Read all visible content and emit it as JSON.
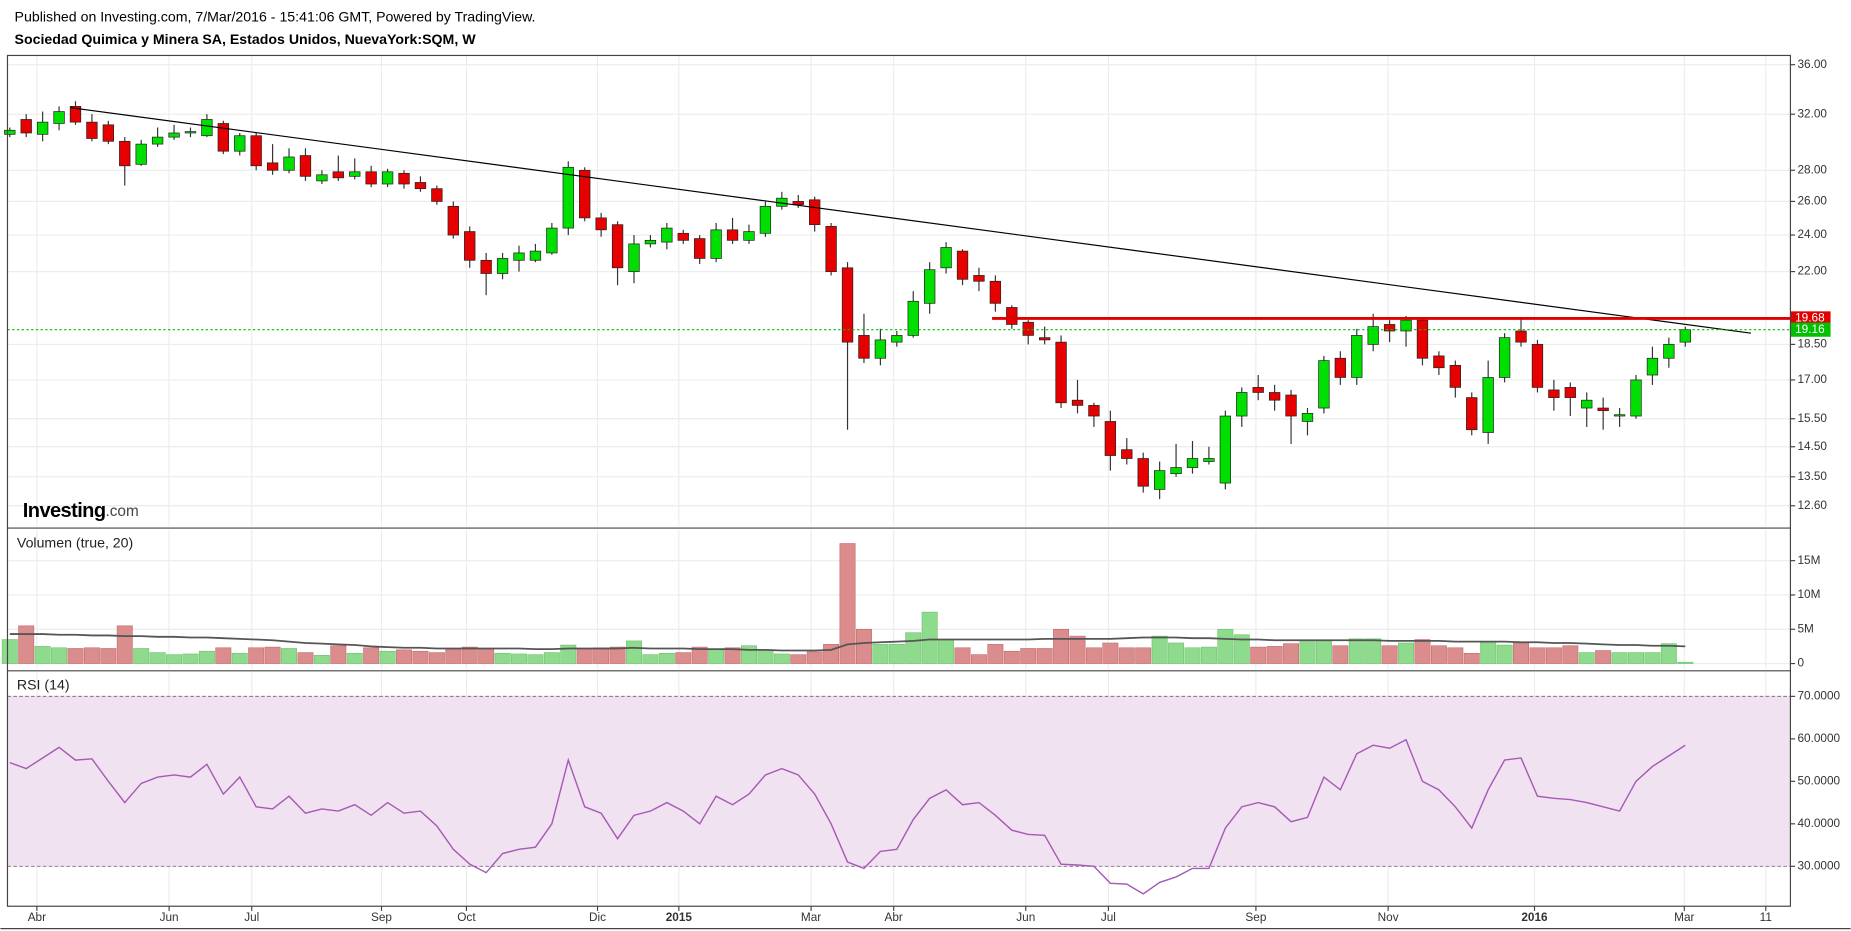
{
  "header": {
    "published": "Published on Investing.com, 7/Mar/2016 - 15:41:06 GMT, Powered by TradingView.",
    "logo": [
      "Investing",
      ".com"
    ]
  },
  "chart_data": [
    {
      "type": "candlestick",
      "title": "Sociedad Quimica y Minera SA, Estados Unidos, NuevaYork:SQM, W",
      "log_scale": true,
      "grid": true,
      "up_color": "#00e000",
      "down_color": "#e60000",
      "open": [
        30.5,
        31.6,
        30.5,
        31.3,
        32.6,
        31.4,
        31.2,
        30,
        28.4,
        29.8,
        30.3,
        30.6,
        30.4,
        31.3,
        29.3,
        30.4,
        28.5,
        28,
        29,
        27.3,
        27.9,
        27.6,
        27.9,
        27.1,
        27.8,
        27.2,
        26.8,
        25.7,
        24.2,
        22.6,
        21.9,
        22.6,
        22.6,
        23,
        24.4,
        28,
        25,
        24.6,
        22,
        23.5,
        23.6,
        24.1,
        23.8,
        22.7,
        24.3,
        23.7,
        24.1,
        25.7,
        26,
        26.1,
        24.5,
        22.2,
        18.9,
        17.9,
        18.6,
        18.9,
        20.4,
        22.2,
        23.1,
        21.8,
        21.5,
        20.2,
        19.5,
        18.8,
        18.6,
        16.2,
        16,
        15.4,
        14.4,
        14.1,
        13.1,
        13.6,
        13.8,
        14,
        13.3,
        15.6,
        16.7,
        16.5,
        16.4,
        15.4,
        15.9,
        17.9,
        17.1,
        18.5,
        19.4,
        19.1,
        19.6,
        18,
        17.6,
        16.3,
        15,
        17.1,
        19.1,
        18.5,
        16.6,
        16.7,
        15.9,
        15.9,
        15.6,
        15.6,
        17.2,
        17.9,
        18.6
      ],
      "high": [
        31,
        32,
        32.2,
        32.6,
        33,
        32,
        31.5,
        30.3,
        30.1,
        31,
        31.2,
        31,
        32,
        31.5,
        30.6,
        30.6,
        29.8,
        29.5,
        29.5,
        28,
        29,
        28.8,
        28.3,
        28.1,
        28,
        27.6,
        27,
        26,
        24.5,
        23,
        23,
        23.4,
        23.5,
        24.7,
        28.6,
        28.2,
        25.3,
        24.8,
        24,
        24,
        24.7,
        24.3,
        24,
        24.7,
        25,
        24.6,
        26,
        26.6,
        26.4,
        26.3,
        24.7,
        22.5,
        19.9,
        19.2,
        19.1,
        21,
        22.5,
        23.6,
        23.2,
        22.2,
        21.8,
        20.3,
        19.6,
        19.3,
        18.9,
        17,
        16.1,
        15.8,
        14.8,
        14.3,
        14,
        14.6,
        14.7,
        14.5,
        15.8,
        16.7,
        17.2,
        16.8,
        16.6,
        15.9,
        18,
        18.2,
        19.2,
        19.9,
        19.6,
        19.8,
        19.7,
        18.2,
        17.8,
        16.5,
        17.8,
        19,
        19.7,
        18.7,
        17,
        16.9,
        16.5,
        16.3,
        15.9,
        17.2,
        18.4,
        18.8,
        19.3
      ],
      "low": [
        30.3,
        30.3,
        30,
        30.8,
        31.2,
        30,
        29.8,
        27,
        28.3,
        29.6,
        30.1,
        30.3,
        30.3,
        29.1,
        29,
        28,
        27.7,
        27.8,
        27.3,
        27.1,
        27.3,
        27.4,
        26.9,
        26.9,
        26.8,
        26.6,
        25.8,
        23.8,
        22.2,
        20.8,
        21.6,
        22,
        22.5,
        22.9,
        24,
        24.8,
        23.9,
        21.3,
        21.4,
        23.3,
        23.2,
        23.5,
        22.4,
        22.5,
        23.5,
        23.5,
        23.9,
        25.5,
        25.6,
        24.2,
        21.8,
        15.1,
        17.7,
        17.6,
        18.4,
        18.8,
        19.9,
        21.9,
        21.3,
        21,
        20,
        19.2,
        18.5,
        18.5,
        15.9,
        15.7,
        15.2,
        13.7,
        13.9,
        13,
        12.8,
        13.5,
        13.6,
        13.9,
        13.1,
        15.2,
        16.2,
        15.8,
        14.6,
        14.9,
        15.7,
        16.8,
        16.8,
        18.2,
        18.6,
        18.4,
        17.6,
        17.2,
        16.3,
        14.9,
        14.6,
        16.9,
        18.4,
        16.5,
        15.8,
        15.6,
        15.2,
        15.1,
        15.2,
        15.5,
        16.8,
        17.5,
        18.4
      ],
      "close": [
        30.8,
        30.6,
        31.4,
        32.2,
        31.4,
        30.2,
        30,
        28.3,
        29.8,
        30.3,
        30.6,
        30.7,
        31.6,
        29.3,
        30.4,
        28.3,
        28,
        28.9,
        27.6,
        27.7,
        27.5,
        27.9,
        27.1,
        27.9,
        27.1,
        26.8,
        26,
        24,
        22.6,
        21.9,
        22.7,
        23,
        23.1,
        24.4,
        28.2,
        25,
        24.3,
        22.2,
        23.5,
        23.7,
        24.4,
        23.7,
        22.7,
        24.3,
        23.7,
        24.2,
        25.7,
        26.2,
        25.8,
        24.6,
        22,
        18.6,
        17.9,
        18.7,
        18.9,
        20.5,
        22.1,
        23.3,
        21.6,
        21.5,
        20.4,
        19.4,
        18.9,
        18.7,
        16.1,
        16,
        15.6,
        14.2,
        14.1,
        13.2,
        13.7,
        13.8,
        14.1,
        14.1,
        15.6,
        16.5,
        16.5,
        16.2,
        15.6,
        15.7,
        17.8,
        17.1,
        18.9,
        19.3,
        19.1,
        19.6,
        17.9,
        17.5,
        16.7,
        15.1,
        17.1,
        18.8,
        18.6,
        16.7,
        16.3,
        16.3,
        16.2,
        15.8,
        15.65,
        17,
        17.9,
        18.5,
        19.16
      ],
      "ylim": [
        12.0,
        36.8
      ],
      "yticks": [
        {
          "value": 36,
          "label": "36.00"
        },
        {
          "value": 32,
          "label": "32.00"
        },
        {
          "value": 28,
          "label": "28.00"
        },
        {
          "value": 26,
          "label": "26.00"
        },
        {
          "value": 24,
          "label": "24.00"
        },
        {
          "value": 22,
          "label": "22.00"
        },
        {
          "value": 18.5,
          "label": "18.50"
        },
        {
          "value": 17,
          "label": "17.00"
        },
        {
          "value": 15.5,
          "label": "15.50"
        },
        {
          "value": 14.5,
          "label": "14.50"
        },
        {
          "value": 13.5,
          "label": "13.50"
        },
        {
          "value": 12.6,
          "label": "12.60"
        }
      ],
      "xlim": [
        -0.14,
        108.4
      ],
      "xticks": [
        {
          "value": 1.65,
          "label": "Abr"
        },
        {
          "value": 9.7,
          "label": "Jun"
        },
        {
          "value": 14.73,
          "label": "Jul"
        },
        {
          "value": 22.63,
          "label": "Sep"
        },
        {
          "value": 27.8,
          "label": "Oct"
        },
        {
          "value": 35.78,
          "label": "Dic"
        },
        {
          "value": 40.73,
          "label": "2015"
        },
        {
          "value": 48.78,
          "label": "Mar"
        },
        {
          "value": 53.81,
          "label": "Abr"
        },
        {
          "value": 61.85,
          "label": "Jun"
        },
        {
          "value": 66.88,
          "label": "Jul"
        },
        {
          "value": 75.86,
          "label": "Sep"
        },
        {
          "value": 83.91,
          "label": "Nov"
        },
        {
          "value": 92.82,
          "label": "2016"
        },
        {
          "value": 101.94,
          "label": "Mar"
        },
        {
          "value": 106.9,
          "label": "11"
        }
      ],
      "trendline": {
        "x": [
          3.7,
          106
        ],
        "values": [
          32.5,
          19.0
        ],
        "color": "#000000"
      },
      "hlines": [
        {
          "value": 19.68,
          "label": "19.68",
          "color": "#e00000",
          "from": 59.8
        },
        {
          "value": 19.16,
          "label": "19.16",
          "color": "#00c000",
          "dotted": true
        }
      ]
    },
    {
      "type": "bar",
      "title": "Volumen (true, 20)",
      "up_color": "#8edb8e",
      "down_color": "#db8c8c",
      "line_color": "#555555",
      "values": [
        3.5,
        5.5,
        2.5,
        2.3,
        2.2,
        2.3,
        2.2,
        5.5,
        2.2,
        1.6,
        1.3,
        1.4,
        1.8,
        2.3,
        1.5,
        2.3,
        2.4,
        2.2,
        1.6,
        1.2,
        2.6,
        1.5,
        2.3,
        1.8,
        2.0,
        1.8,
        1.6,
        2.0,
        2.4,
        2.2,
        1.5,
        1.4,
        1.3,
        1.6,
        2.7,
        2.2,
        2.3,
        2.4,
        3.3,
        1.3,
        1.5,
        1.6,
        2.4,
        2.0,
        2.3,
        2.6,
        2.0,
        1.4,
        1.3,
        1.7,
        2.8,
        17.5,
        5.0,
        2.8,
        2.8,
        4.5,
        7.5,
        3.5,
        2.3,
        1.3,
        2.8,
        1.8,
        2.2,
        2.2,
        5.0,
        4.0,
        2.3,
        3.0,
        2.3,
        2.3,
        4.0,
        3.0,
        2.3,
        2.4,
        5.0,
        4.2,
        2.4,
        2.5,
        2.9,
        3.2,
        3.4,
        2.6,
        3.6,
        3.6,
        2.6,
        3.0,
        3.5,
        2.6,
        2.3,
        1.5,
        3.2,
        2.7,
        3.0,
        2.3,
        2.3,
        2.6,
        1.6,
        1.9,
        1.6,
        1.6,
        1.6,
        2.9,
        0.2
      ],
      "ma": [
        4.3,
        4.3,
        4.3,
        4.2,
        4.2,
        4.1,
        4.1,
        4.0,
        4.0,
        3.9,
        3.9,
        3.8,
        3.8,
        3.7,
        3.6,
        3.5,
        3.4,
        3.2,
        3.0,
        2.9,
        2.8,
        2.7,
        2.5,
        2.4,
        2.3,
        2.3,
        2.2,
        2.2,
        2.2,
        2.2,
        2.2,
        2.2,
        2.1,
        2.1,
        2.2,
        2.2,
        2.2,
        2.2,
        2.3,
        2.2,
        2.2,
        2.2,
        2.1,
        2.1,
        2.1,
        2.0,
        2.0,
        1.9,
        1.9,
        1.9,
        2.0,
        2.8,
        3.0,
        3.1,
        3.2,
        3.3,
        3.5,
        3.5,
        3.5,
        3.5,
        3.5,
        3.5,
        3.5,
        3.6,
        3.6,
        3.6,
        3.6,
        3.6,
        3.7,
        3.8,
        3.8,
        3.8,
        3.7,
        3.7,
        3.6,
        3.5,
        3.5,
        3.4,
        3.4,
        3.4,
        3.4,
        3.4,
        3.4,
        3.4,
        3.3,
        3.3,
        3.3,
        3.3,
        3.2,
        3.2,
        3.2,
        3.2,
        3.1,
        3.1,
        3.0,
        3.0,
        2.9,
        2.8,
        2.7,
        2.7,
        2.6,
        2.6,
        2.5
      ],
      "ylim": [
        -0.8,
        19.5
      ],
      "yticks": [
        {
          "value": 15,
          "label": "15M"
        },
        {
          "value": 10,
          "label": "10M"
        },
        {
          "value": 5,
          "label": "5M"
        },
        0
      ]
    },
    {
      "type": "line",
      "title": "RSI (14)",
      "color": "#a55ab5",
      "band": [
        30,
        70
      ],
      "band_color": "#f1e2f1",
      "values": [
        54.4,
        53,
        55.5,
        58,
        55,
        55.3,
        50,
        45,
        49.5,
        51,
        51.5,
        51,
        54,
        47,
        51,
        44,
        43.5,
        46.5,
        42.5,
        43.5,
        43,
        44.5,
        42,
        45,
        42.5,
        43,
        39.5,
        34,
        30.5,
        28.5,
        33,
        34,
        34.5,
        40,
        55,
        44,
        42.5,
        36.5,
        42,
        43,
        45,
        43,
        40,
        46.5,
        44.5,
        47,
        51.5,
        53,
        51.5,
        47,
        40,
        31,
        29.5,
        33.5,
        34,
        41,
        46,
        48,
        44.5,
        45,
        42,
        38.5,
        37.5,
        37.3,
        30.5,
        30.3,
        30,
        26,
        25.8,
        23.5,
        26.2,
        27.5,
        29.5,
        29.5,
        39,
        44,
        45,
        44,
        40.5,
        41.5,
        51,
        48,
        56.5,
        58.5,
        57.8,
        59.8,
        50,
        48,
        44,
        39,
        48,
        55,
        55.5,
        46.5,
        46,
        45.7,
        45,
        44,
        43,
        50,
        53.5,
        56,
        58.5
      ],
      "ylim": [
        20.6,
        75.6
      ],
      "yticks": [
        {
          "value": 70,
          "label": "70.0000"
        },
        {
          "value": 60,
          "label": "60.0000"
        },
        {
          "value": 50,
          "label": "50.0000"
        },
        {
          "value": 40,
          "label": "40.0000"
        },
        {
          "value": 30,
          "label": "30.0000"
        }
      ]
    }
  ]
}
